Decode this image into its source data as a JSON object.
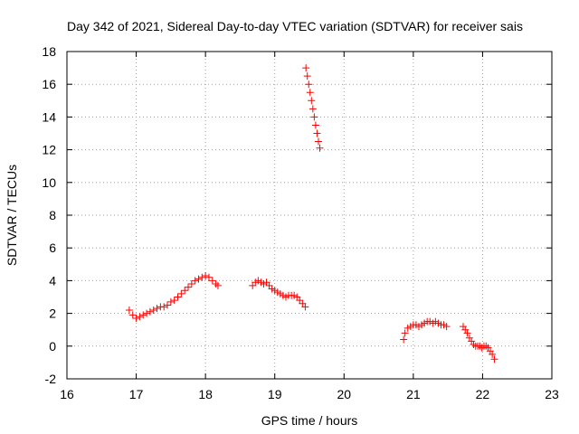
{
  "chart_data": {
    "type": "scatter",
    "title": "Day 342 of 2021, Sidereal Day-to-day VTEC variation (SDTVAR) for receiver sais",
    "xlabel": "GPS time / hours",
    "ylabel": "SDTVAR / TECUs",
    "xlim": [
      16,
      23
    ],
    "ylim": [
      -2,
      18
    ],
    "xticks": [
      16,
      17,
      18,
      19,
      20,
      21,
      22,
      23
    ],
    "yticks": [
      -2,
      0,
      2,
      4,
      6,
      8,
      10,
      12,
      14,
      16,
      18
    ],
    "grid": true,
    "marker": "+",
    "color": "#ff0000",
    "segments": [
      {
        "x": [
          16.9,
          16.95,
          17.0,
          17.05,
          17.1,
          17.15,
          17.2,
          17.25,
          17.3,
          17.35,
          17.4,
          17.45,
          17.5,
          17.55,
          17.6,
          17.65,
          17.7,
          17.75,
          17.8,
          17.85,
          17.9,
          17.95,
          18.0,
          18.05,
          18.1,
          18.15,
          18.18
        ],
        "y": [
          2.2,
          1.9,
          1.7,
          1.8,
          1.9,
          2.0,
          2.1,
          2.2,
          2.3,
          2.4,
          2.4,
          2.5,
          2.7,
          2.8,
          3.0,
          3.2,
          3.4,
          3.6,
          3.8,
          4.0,
          4.1,
          4.2,
          4.3,
          4.2,
          4.0,
          3.8,
          3.7
        ]
      },
      {
        "x": [
          18.68,
          18.72,
          18.76,
          18.8,
          18.84,
          18.88,
          18.92,
          18.96,
          19.0,
          19.04,
          19.08,
          19.12,
          19.16,
          19.2,
          19.24,
          19.28,
          19.32,
          19.36,
          19.4,
          19.44
        ],
        "y": [
          3.7,
          3.9,
          4.0,
          3.9,
          3.8,
          3.9,
          3.7,
          3.5,
          3.4,
          3.3,
          3.2,
          3.1,
          3.0,
          3.1,
          3.1,
          3.1,
          3.0,
          2.8,
          2.6,
          2.4
        ]
      },
      {
        "x": [
          19.45,
          19.47,
          19.49,
          19.51,
          19.53,
          19.55,
          19.57,
          19.59,
          19.61,
          19.63,
          19.65
        ],
        "y": [
          17.0,
          16.5,
          16.0,
          15.5,
          15.0,
          14.5,
          14.0,
          13.5,
          13.0,
          12.5,
          12.1
        ]
      },
      {
        "x": [
          20.86,
          20.88,
          20.92,
          20.96,
          21.0,
          21.04,
          21.08,
          21.12,
          21.16,
          21.2,
          21.24,
          21.28,
          21.32,
          21.36,
          21.4,
          21.44,
          21.48
        ],
        "y": [
          0.4,
          0.8,
          1.1,
          1.2,
          1.3,
          1.3,
          1.2,
          1.3,
          1.4,
          1.5,
          1.5,
          1.4,
          1.5,
          1.4,
          1.3,
          1.3,
          1.2
        ]
      },
      {
        "x": [
          21.72,
          21.75,
          21.78,
          21.81,
          21.84,
          21.87,
          21.9,
          21.93,
          21.96,
          21.99,
          22.02,
          22.05,
          22.08,
          22.11,
          22.14,
          22.17
        ],
        "y": [
          1.2,
          1.0,
          0.8,
          0.5,
          0.3,
          0.1,
          0.0,
          0.0,
          0.0,
          -0.1,
          0.0,
          0.0,
          -0.1,
          -0.3,
          -0.5,
          -0.8
        ]
      }
    ]
  }
}
